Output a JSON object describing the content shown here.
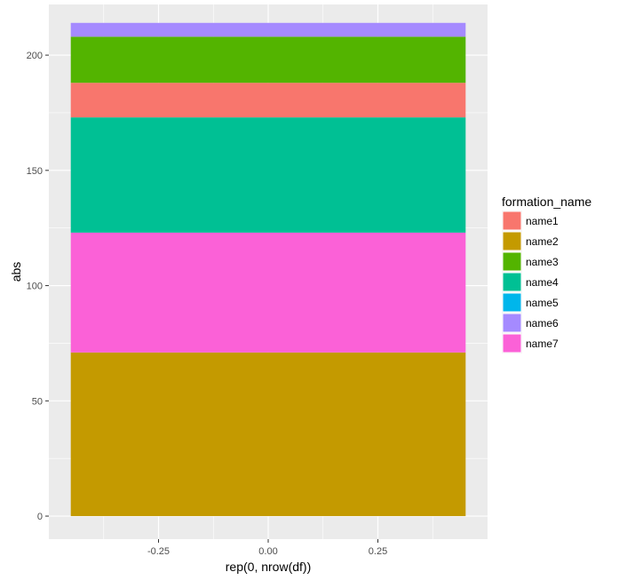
{
  "chart_data": {
    "type": "bar",
    "stacked": true,
    "xlabel": "rep(0, nrow(df))",
    "ylabel": "abs",
    "xlim": [
      -0.5,
      0.5
    ],
    "ylim": [
      -10,
      222
    ],
    "x_ticks": [
      -0.25,
      0.0,
      0.25
    ],
    "x_tick_labels": [
      "-0.25",
      "0.00",
      "0.25"
    ],
    "y_ticks": [
      0,
      50,
      100,
      150,
      200
    ],
    "y_tick_labels": [
      "0",
      "50",
      "100",
      "150",
      "200"
    ],
    "bar_x": 0,
    "bar_width": 0.9,
    "grid": true,
    "legend_position": "right",
    "legend": {
      "title": "formation_name",
      "entries": [
        {
          "name": "name1",
          "color": "#F8766D"
        },
        {
          "name": "name2",
          "color": "#C49A00"
        },
        {
          "name": "name3",
          "color": "#53B400"
        },
        {
          "name": "name4",
          "color": "#00C094"
        },
        {
          "name": "name5",
          "color": "#00B6EB"
        },
        {
          "name": "name6",
          "color": "#A58AFF"
        },
        {
          "name": "name7",
          "color": "#FB61D7"
        }
      ]
    },
    "series": [
      {
        "name": "name2",
        "value": 71
      },
      {
        "name": "name7",
        "value": 52
      },
      {
        "name": "name4",
        "value": 50
      },
      {
        "name": "name1",
        "value": 15
      },
      {
        "name": "name3",
        "value": 20
      },
      {
        "name": "name6",
        "value": 6
      }
    ],
    "colors": {
      "panel_background": "#EBEBEB",
      "grid_major": "#FFFFFF",
      "axis_text": "#4D4D4D"
    }
  }
}
